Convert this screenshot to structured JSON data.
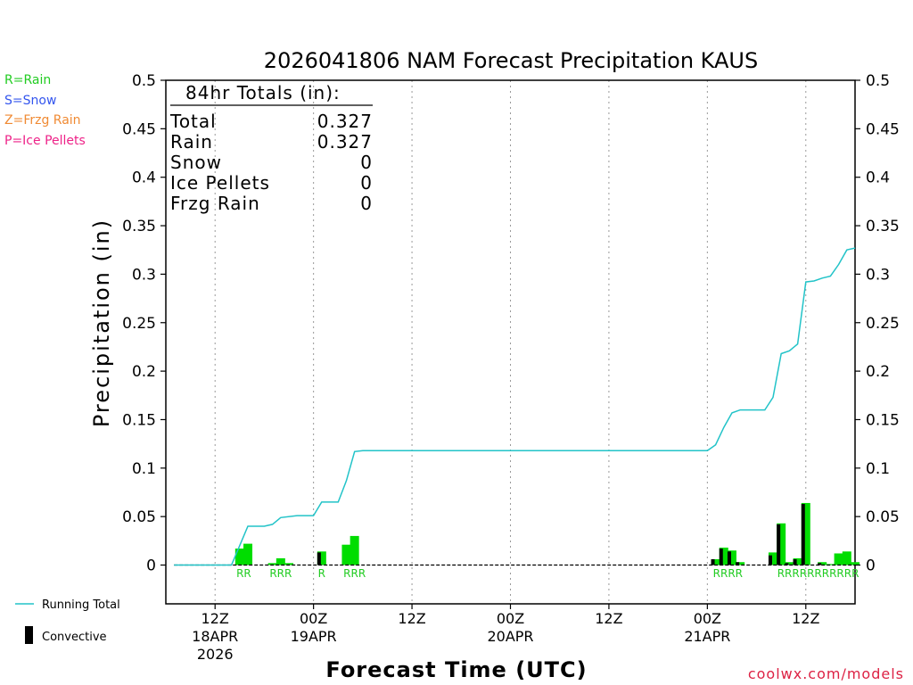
{
  "chart_data": {
    "type": "bar",
    "title": "2026041806 NAM Forecast Precipitation KAUS",
    "xlabel": "Forecast Time (UTC)",
    "ylabel": "Precipitation (in)",
    "ylim": [
      -0.04,
      0.5
    ],
    "xlim": [
      0,
      84
    ],
    "yticks": [
      "0",
      "0.05",
      "0.1",
      "0.15",
      "0.2",
      "0.25",
      "0.3",
      "0.35",
      "0.4",
      "0.45",
      "0.5"
    ],
    "ytick_values": [
      0,
      0.05,
      0.1,
      0.15,
      0.2,
      0.25,
      0.3,
      0.35,
      0.4,
      0.45,
      0.5
    ],
    "xticks": [
      {
        "hour": 6,
        "l1": "12Z",
        "l2": "18APR",
        "l3": "2026"
      },
      {
        "hour": 18,
        "l1": "00Z",
        "l2": "19APR",
        "l3": ""
      },
      {
        "hour": 30,
        "l1": "12Z",
        "l2": "",
        "l3": ""
      },
      {
        "hour": 42,
        "l1": "00Z",
        "l2": "20APR",
        "l3": ""
      },
      {
        "hour": 54,
        "l1": "12Z",
        "l2": "",
        "l3": ""
      },
      {
        "hour": 66,
        "l1": "00Z",
        "l2": "21APR",
        "l3": ""
      },
      {
        "hour": 78,
        "l1": "12Z",
        "l2": "",
        "l3": ""
      }
    ],
    "bars": [
      {
        "hour": 9,
        "total": 0.017,
        "convective": 0
      },
      {
        "hour": 10,
        "total": 0.022,
        "convective": 0
      },
      {
        "hour": 13,
        "total": 0.002,
        "convective": 0
      },
      {
        "hour": 14,
        "total": 0.007,
        "convective": 0
      },
      {
        "hour": 15,
        "total": 0.002,
        "convective": 0
      },
      {
        "hour": 19,
        "total": 0.014,
        "convective": 0.013
      },
      {
        "hour": 22,
        "total": 0.021,
        "convective": 0
      },
      {
        "hour": 23,
        "total": 0.03,
        "convective": 0
      },
      {
        "hour": 67,
        "total": 0.006,
        "convective": 0.006
      },
      {
        "hour": 68,
        "total": 0.018,
        "convective": 0.017
      },
      {
        "hour": 69,
        "total": 0.015,
        "convective": 0.014
      },
      {
        "hour": 70,
        "total": 0.003,
        "convective": 0.003
      },
      {
        "hour": 74,
        "total": 0.013,
        "convective": 0.01
      },
      {
        "hour": 75,
        "total": 0.043,
        "convective": 0.042
      },
      {
        "hour": 76,
        "total": 0.003,
        "convective": 0.002
      },
      {
        "hour": 77,
        "total": 0.007,
        "convective": 0.006
      },
      {
        "hour": 78,
        "total": 0.064,
        "convective": 0.063
      },
      {
        "hour": 80,
        "total": 0.003,
        "convective": 0.002
      },
      {
        "hour": 81,
        "total": 0.001,
        "convective": 0
      },
      {
        "hour": 82,
        "total": 0.012,
        "convective": 0
      },
      {
        "hour": 83,
        "total": 0.014,
        "convective": 0
      },
      {
        "hour": 84,
        "total": 0.003,
        "convective": 0
      }
    ],
    "running_total": {
      "hours": [
        1,
        7,
        8,
        9,
        10,
        12,
        13,
        14,
        16,
        17,
        18,
        19,
        20,
        21,
        22,
        23,
        24,
        66,
        67,
        68,
        69,
        70,
        71,
        72,
        73,
        74,
        75,
        76,
        77,
        78,
        79,
        80,
        81,
        82,
        83,
        84
      ],
      "values": [
        0,
        0,
        0,
        0.02,
        0.04,
        0.04,
        0.042,
        0.049,
        0.051,
        0.051,
        0.051,
        0.065,
        0.065,
        0.065,
        0.087,
        0.117,
        0.118,
        0.118,
        0.124,
        0.142,
        0.157,
        0.16,
        0.16,
        0.16,
        0.16,
        0.173,
        0.218,
        0.221,
        0.228,
        0.292,
        0.293,
        0.296,
        0.298,
        0.31,
        0.325,
        0.327
      ]
    },
    "precip_labels": [
      {
        "hour": 9.5,
        "text": "RR"
      },
      {
        "hour": 14,
        "text": "RRR"
      },
      {
        "hour": 19,
        "text": "R"
      },
      {
        "hour": 23,
        "text": "RRR"
      },
      {
        "hour": 68.5,
        "text": "RRRR"
      },
      {
        "hour": 79.5,
        "text": "RRRRRRRRRRR"
      }
    ],
    "totals_box": {
      "heading": "84hr Totals (in):",
      "rows": [
        {
          "label": "Total",
          "value": "0.327"
        },
        {
          "label": "Rain",
          "value": "0.327"
        },
        {
          "label": "Snow",
          "value": "0"
        },
        {
          "label": "Ice Pellets",
          "value": "0"
        },
        {
          "label": "Frzg Rain",
          "value": "0"
        }
      ]
    },
    "legend_types": [
      {
        "text": "R=Rain",
        "color": "#22cc22"
      },
      {
        "text": "S=Snow",
        "color": "#3355ee"
      },
      {
        "text": "Z=Frzg Rain",
        "color": "#f08a33"
      },
      {
        "text": "P=Ice Pellets",
        "color": "#ee2288"
      }
    ],
    "legend_series": [
      {
        "text": "Running Total",
        "color": "#22c3c8"
      },
      {
        "text": "Convective",
        "color": "#000000"
      }
    ],
    "credit": "coolwx.com/models",
    "colors": {
      "bar": "#00dd00",
      "convective": "#000000",
      "running_total": "#22c3c8",
      "label_rain": "#22cc22",
      "grid": "#999999",
      "credit": "#dd2244"
    }
  }
}
